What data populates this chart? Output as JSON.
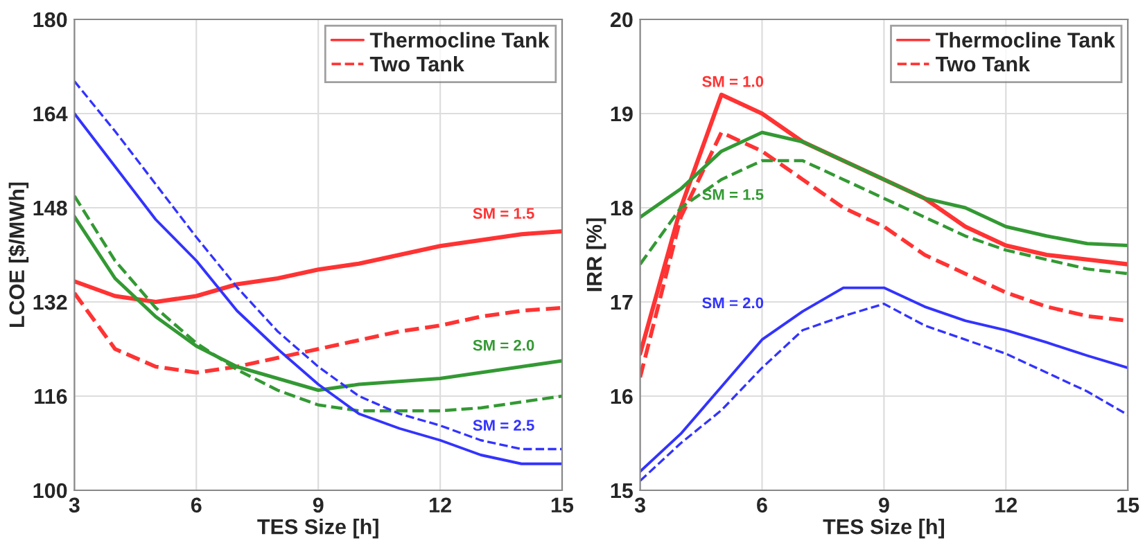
{
  "chart_data": [
    {
      "type": "line",
      "xlabel": "TES Size [h]",
      "ylabel": "LCOE [$/MWh]",
      "x": [
        3,
        4,
        5,
        6,
        7,
        8,
        9,
        10,
        11,
        12,
        13,
        14,
        15
      ],
      "xlim": [
        3,
        15
      ],
      "xticks": [
        3,
        6,
        9,
        12,
        15
      ],
      "ylim": [
        100,
        180
      ],
      "yticks": [
        100,
        116,
        132,
        148,
        164,
        180
      ],
      "grid": true,
      "legend": "top right",
      "series": [
        {
          "name": "Thermocline Tank",
          "color": "#ff3333",
          "line_style": "solid",
          "values": [
            135.5,
            133,
            132,
            133,
            135,
            136,
            137.5,
            138.5,
            140,
            141.5,
            142.5,
            143.5,
            144
          ]
        },
        {
          "name": "Two Tank",
          "color": "#ff3333",
          "line_style": "dashed",
          "values": [
            133.5,
            124,
            121,
            120,
            121,
            122.5,
            124,
            125.5,
            127,
            128,
            129.5,
            130.5,
            131
          ]
        },
        {
          "color": "#339933",
          "line_style": "solid",
          "values": [
            146.5,
            136,
            129.5,
            124.5,
            121,
            119,
            117,
            118,
            118.5,
            119,
            120,
            121,
            122
          ]
        },
        {
          "color": "#339933",
          "line_style": "dashed",
          "values": [
            150,
            139,
            131,
            125,
            120.5,
            117,
            114.5,
            113.5,
            113.5,
            113.5,
            114,
            115,
            116
          ]
        },
        {
          "color": "#3333ff",
          "line_style": "solid",
          "values": [
            164,
            155,
            146,
            139,
            130.5,
            124,
            118,
            113,
            110.5,
            108.5,
            106,
            104.5,
            104.5
          ]
        },
        {
          "color": "#3333ff",
          "line_style": "dashed",
          "values": [
            169.5,
            161,
            152,
            143,
            134.5,
            127,
            121,
            116,
            113,
            111,
            108.5,
            107,
            107
          ]
        }
      ],
      "annotations": [
        "SM = 1.5",
        "SM = 2.0",
        "SM = 2.5"
      ]
    },
    {
      "type": "line",
      "xlabel": "TES Size [h]",
      "ylabel": "IRR [%]",
      "x": [
        3,
        4,
        5,
        6,
        7,
        8,
        9,
        10,
        11,
        12,
        13,
        14,
        15
      ],
      "xlim": [
        3,
        15
      ],
      "xticks": [
        3,
        6,
        9,
        12,
        15
      ],
      "ylim": [
        15,
        20
      ],
      "yticks": [
        15,
        16,
        17,
        18,
        19,
        20
      ],
      "grid": true,
      "legend": "top right",
      "series": [
        {
          "name": "Thermocline Tank",
          "color": "#ff3333",
          "line_style": "solid",
          "values": [
            16.45,
            18.0,
            19.2,
            19.0,
            18.7,
            18.5,
            18.3,
            18.1,
            17.8,
            17.6,
            17.5,
            17.45,
            17.4
          ]
        },
        {
          "name": "Two Tank",
          "color": "#ff3333",
          "line_style": "dashed",
          "values": [
            16.2,
            17.9,
            18.8,
            18.6,
            18.3,
            18.0,
            17.8,
            17.5,
            17.3,
            17.1,
            16.95,
            16.85,
            16.8
          ]
        },
        {
          "color": "#339933",
          "line_style": "solid",
          "values": [
            17.9,
            18.2,
            18.6,
            18.8,
            18.7,
            18.5,
            18.3,
            18.1,
            18.0,
            17.8,
            17.7,
            17.62,
            17.6
          ]
        },
        {
          "color": "#339933",
          "line_style": "dashed",
          "values": [
            17.4,
            18.0,
            18.3,
            18.5,
            18.5,
            18.3,
            18.1,
            17.9,
            17.7,
            17.55,
            17.45,
            17.35,
            17.3
          ]
        },
        {
          "color": "#3333ff",
          "line_style": "solid",
          "values": [
            15.2,
            15.6,
            16.1,
            16.6,
            16.9,
            17.15,
            17.15,
            16.95,
            16.8,
            16.7,
            16.57,
            16.43,
            16.3
          ]
        },
        {
          "color": "#3333ff",
          "line_style": "dashed",
          "values": [
            15.1,
            15.5,
            15.85,
            16.3,
            16.7,
            16.85,
            16.98,
            16.75,
            16.6,
            16.45,
            16.25,
            16.05,
            15.8
          ]
        }
      ],
      "annotations": [
        "SM = 1.0",
        "SM = 1.5",
        "SM = 2.0"
      ]
    }
  ]
}
